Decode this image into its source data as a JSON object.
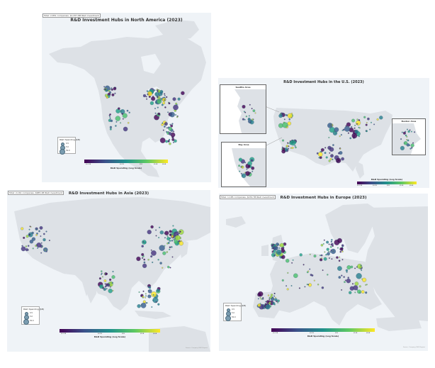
{
  "panels": {
    "na": {
      "title": "R&D Investment Hubs in North America (2023)",
      "note": "Total: 2,851 companies, $1,057.8B R&D investment",
      "legend_title": "R&D Spending ($B)",
      "legend_values": [
        "0.5",
        "5.0",
        "50.0"
      ],
      "colorbar_label": "R&D Spending (Log Scale)",
      "colorbar_ticks": [
        "$0.01B",
        "$0.1B",
        "$1B",
        "$10B",
        "$50B"
      ]
    },
    "us": {
      "title": "R&D Investment Hubs in the U.S. (2023)",
      "insets": [
        "Seattle Area",
        "Bay Area",
        "Boston Area"
      ],
      "colorbar_label": "R&D Spending (Log Scale)",
      "colorbar_ticks": [
        "$0.01B",
        "$0.1B",
        "$1B",
        "$10B",
        "$50B"
      ]
    },
    "asia": {
      "title": "R&D Investment Hubs in Asia (2023)",
      "note": "Total: 2,161 companies, $685.4B R&D investment",
      "legend_title": "R&D Spending ($B)",
      "legend_values": [
        "0.5",
        "5.0",
        "50.0"
      ],
      "colorbar_label": "R&D Spending (Log Scale)",
      "colorbar_ticks": [
        "$0.01B",
        "$0.1B",
        "$1B",
        "$10B",
        "$50B"
      ],
      "credit": "Source: Company R&D Reports"
    },
    "europe": {
      "title": "R&D Investment Hubs in Europe (2023)",
      "note": "Total: 1,185 companies, $234.7B R&D investment",
      "legend_title": "R&D Spending ($B)",
      "legend_values": [
        "0.5",
        "5.0",
        "50.0"
      ],
      "colorbar_label": "R&D Spending (Log Scale)",
      "colorbar_ticks": [
        "$0.01B",
        "$0.1B",
        "$1B",
        "$10B",
        "$50B"
      ],
      "credit": "Source: Company R&D Reports"
    }
  },
  "colors": {
    "land": "#dde1e6",
    "ocean": "#eff3f7",
    "bubble_low": "#440154",
    "bubble_mid": "#21918c",
    "bubble_high": "#fde725"
  }
}
